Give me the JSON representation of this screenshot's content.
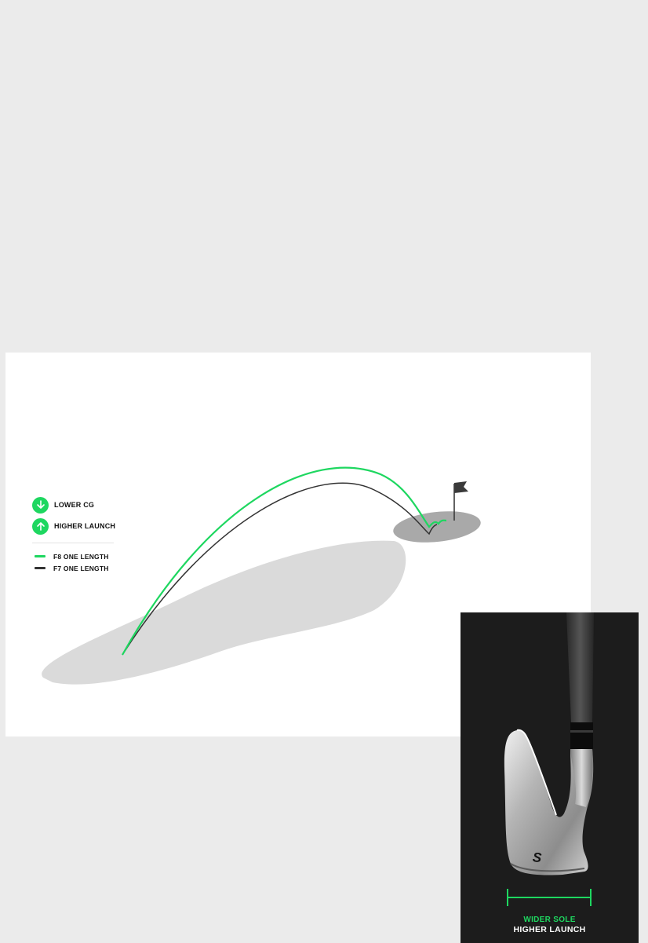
{
  "legend": {
    "items": [
      {
        "icon": "arrow-down-icon",
        "label": "LOWER CG"
      },
      {
        "icon": "arrow-up-icon",
        "label": "HIGHER LAUNCH"
      }
    ],
    "lines": [
      {
        "label": "F8 ONE LENGTH",
        "color": "#1ed760"
      },
      {
        "label": "F7 ONE LENGTH",
        "color": "#333333"
      }
    ]
  },
  "iron_panel": {
    "head_mark": "S",
    "caption_top": "WIDER SOLE",
    "caption_bottom": "HIGHER LAUNCH"
  },
  "colors": {
    "accent": "#1ed760",
    "page_background": "#ebebeb",
    "dark_panel": "#1c1c1c"
  }
}
